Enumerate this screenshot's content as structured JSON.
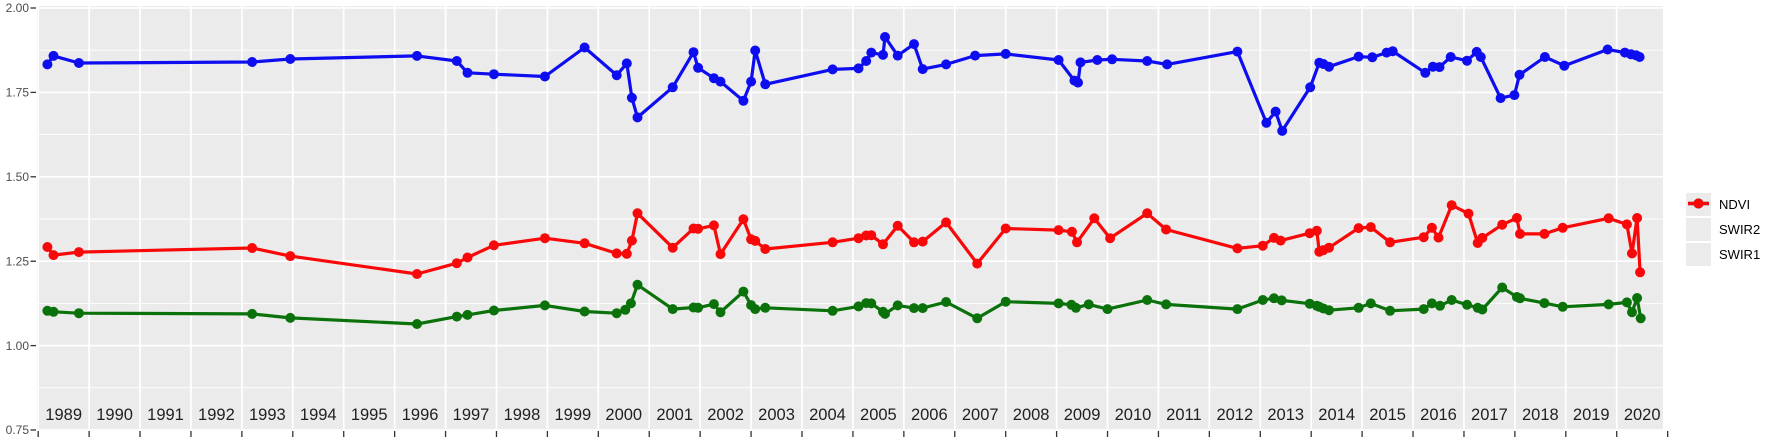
{
  "colors": {
    "background": "#FFFFFF",
    "panel_bg": "#EBEBEB",
    "grid": "#FFFFFF",
    "axis_text_y": "#4D4D4D",
    "axis_text_x": "#1F1F1F",
    "tick": "#333333",
    "legend_key_bg": "#EBEBEB",
    "legend_text": "#000000"
  },
  "chart_data": {
    "type": "line",
    "marker": "circle",
    "title": "",
    "xlabel": "",
    "ylabel": "",
    "x_unit": "year",
    "xlim": [
      1988.97,
      2020.91
    ],
    "ylim": [
      0.75,
      2.0
    ],
    "grid": true,
    "legend_position": "right",
    "y_ticks": [
      {
        "label": "2.00",
        "value": 2.0
      },
      {
        "label": "1.75",
        "value": 1.75
      },
      {
        "label": "1.50",
        "value": 1.5
      },
      {
        "label": "1.25",
        "value": 1.25
      },
      {
        "label": "1.00",
        "value": 1.0
      },
      {
        "label": "0.75",
        "value": 0.75
      }
    ],
    "y_minor_ticks": [
      1.875,
      1.625,
      1.375,
      1.125,
      0.875
    ],
    "x_year_labels": [
      1989,
      1990,
      1991,
      1992,
      1993,
      1994,
      1995,
      1996,
      1997,
      1998,
      1999,
      2000,
      2001,
      2002,
      2003,
      2004,
      2005,
      2006,
      2007,
      2008,
      2009,
      2010,
      2011,
      2012,
      2013,
      2014,
      2015,
      2016,
      2017,
      2018,
      2019,
      2020
    ],
    "x_boundary_ticks": [
      1989,
      1990,
      1991,
      1992,
      1993,
      1994,
      1995,
      1996,
      1997,
      1998,
      1999,
      2000,
      2001,
      2002,
      2003,
      2004,
      2005,
      2006,
      2007,
      2008,
      2009,
      2010,
      2011,
      2012,
      2013,
      2014,
      2015,
      2016,
      2017,
      2018,
      2019,
      2020,
      2021
    ],
    "legend": [
      {
        "label": "NDVI",
        "color": "#0D0DF0"
      },
      {
        "label": "SWIR2",
        "color": "#0B720B"
      },
      {
        "label": "SWIR1",
        "color": "#F80808"
      }
    ],
    "series": [
      {
        "name": "NDVI",
        "color": "#0D0DF0",
        "points": [
          [
            1989.18,
            1.833
          ],
          [
            1989.3,
            1.858
          ],
          [
            1989.8,
            1.837
          ],
          [
            1993.2,
            1.84
          ],
          [
            1993.95,
            1.849
          ],
          [
            1996.44,
            1.858
          ],
          [
            1997.22,
            1.843
          ],
          [
            1997.43,
            1.808
          ],
          [
            1997.95,
            1.804
          ],
          [
            1998.95,
            1.797
          ],
          [
            1999.73,
            1.883
          ],
          [
            2000.36,
            1.801
          ],
          [
            2000.56,
            1.836
          ],
          [
            2000.66,
            1.734
          ],
          [
            2000.77,
            1.676
          ],
          [
            2001.46,
            1.765
          ],
          [
            2001.87,
            1.869
          ],
          [
            2001.96,
            1.823
          ],
          [
            2002.27,
            1.792
          ],
          [
            2002.4,
            1.782
          ],
          [
            2002.85,
            1.725
          ],
          [
            2003.0,
            1.782
          ],
          [
            2003.08,
            1.874
          ],
          [
            2003.28,
            1.774
          ],
          [
            2004.6,
            1.818
          ],
          [
            2005.11,
            1.821
          ],
          [
            2005.26,
            1.843
          ],
          [
            2005.36,
            1.868
          ],
          [
            2005.59,
            1.861
          ],
          [
            2005.63,
            1.914
          ],
          [
            2005.88,
            1.859
          ],
          [
            2006.2,
            1.893
          ],
          [
            2006.37,
            1.819
          ],
          [
            2006.83,
            1.833
          ],
          [
            2007.4,
            1.859
          ],
          [
            2008.0,
            1.864
          ],
          [
            2009.04,
            1.846
          ],
          [
            2009.35,
            1.785
          ],
          [
            2009.42,
            1.779
          ],
          [
            2009.47,
            1.839
          ],
          [
            2009.8,
            1.846
          ],
          [
            2010.09,
            1.848
          ],
          [
            2010.78,
            1.843
          ],
          [
            2011.17,
            1.833
          ],
          [
            2012.55,
            1.871
          ],
          [
            2013.12,
            1.66
          ],
          [
            2013.3,
            1.693
          ],
          [
            2013.43,
            1.636
          ],
          [
            2013.98,
            1.765
          ],
          [
            2014.16,
            1.838
          ],
          [
            2014.24,
            1.834
          ],
          [
            2014.35,
            1.826
          ],
          [
            2014.93,
            1.856
          ],
          [
            2015.2,
            1.854
          ],
          [
            2015.48,
            1.868
          ],
          [
            2015.6,
            1.872
          ],
          [
            2016.24,
            1.808
          ],
          [
            2016.39,
            1.826
          ],
          [
            2016.52,
            1.825
          ],
          [
            2016.74,
            1.855
          ],
          [
            2017.06,
            1.844
          ],
          [
            2017.25,
            1.87
          ],
          [
            2017.33,
            1.855
          ],
          [
            2017.72,
            1.733
          ],
          [
            2017.99,
            1.742
          ],
          [
            2018.09,
            1.802
          ],
          [
            2018.59,
            1.855
          ],
          [
            2018.97,
            1.829
          ],
          [
            2019.82,
            1.877
          ],
          [
            2020.16,
            1.868
          ],
          [
            2020.28,
            1.863
          ],
          [
            2020.38,
            1.86
          ],
          [
            2020.45,
            1.855
          ]
        ]
      },
      {
        "name": "SWIR2",
        "color": "#0B720B",
        "points": [
          [
            1989.18,
            1.103
          ],
          [
            1989.3,
            1.1
          ],
          [
            1989.8,
            1.096
          ],
          [
            1993.2,
            1.094
          ],
          [
            1993.95,
            1.082
          ],
          [
            1996.44,
            1.064
          ],
          [
            1997.22,
            1.086
          ],
          [
            1997.43,
            1.091
          ],
          [
            1997.95,
            1.104
          ],
          [
            1998.95,
            1.119
          ],
          [
            1999.73,
            1.101
          ],
          [
            2000.36,
            1.096
          ],
          [
            2000.53,
            1.106
          ],
          [
            2000.64,
            1.125
          ],
          [
            2000.77,
            1.18
          ],
          [
            2001.46,
            1.108
          ],
          [
            2001.87,
            1.113
          ],
          [
            2001.96,
            1.112
          ],
          [
            2002.27,
            1.123
          ],
          [
            2002.4,
            1.099
          ],
          [
            2002.85,
            1.16
          ],
          [
            2003.0,
            1.12
          ],
          [
            2003.08,
            1.108
          ],
          [
            2003.28,
            1.112
          ],
          [
            2004.6,
            1.103
          ],
          [
            2005.11,
            1.116
          ],
          [
            2005.26,
            1.126
          ],
          [
            2005.36,
            1.125
          ],
          [
            2005.59,
            1.1
          ],
          [
            2005.63,
            1.094
          ],
          [
            2005.88,
            1.119
          ],
          [
            2006.2,
            1.111
          ],
          [
            2006.37,
            1.111
          ],
          [
            2006.83,
            1.129
          ],
          [
            2007.44,
            1.081
          ],
          [
            2008.0,
            1.13
          ],
          [
            2009.04,
            1.125
          ],
          [
            2009.29,
            1.121
          ],
          [
            2009.38,
            1.112
          ],
          [
            2009.63,
            1.122
          ],
          [
            2010.0,
            1.108
          ],
          [
            2010.78,
            1.135
          ],
          [
            2011.15,
            1.122
          ],
          [
            2012.55,
            1.108
          ],
          [
            2013.05,
            1.135
          ],
          [
            2013.27,
            1.14
          ],
          [
            2013.42,
            1.134
          ],
          [
            2013.97,
            1.124
          ],
          [
            2014.11,
            1.118
          ],
          [
            2014.16,
            1.115
          ],
          [
            2014.24,
            1.11
          ],
          [
            2014.35,
            1.105
          ],
          [
            2014.93,
            1.112
          ],
          [
            2015.17,
            1.125
          ],
          [
            2015.55,
            1.103
          ],
          [
            2016.21,
            1.108
          ],
          [
            2016.37,
            1.125
          ],
          [
            2016.53,
            1.118
          ],
          [
            2016.76,
            1.135
          ],
          [
            2017.06,
            1.121
          ],
          [
            2017.27,
            1.112
          ],
          [
            2017.36,
            1.107
          ],
          [
            2017.75,
            1.172
          ],
          [
            2018.04,
            1.144
          ],
          [
            2018.1,
            1.14
          ],
          [
            2018.58,
            1.126
          ],
          [
            2018.94,
            1.115
          ],
          [
            2019.84,
            1.122
          ],
          [
            2020.2,
            1.128
          ],
          [
            2020.3,
            1.099
          ],
          [
            2020.4,
            1.141
          ],
          [
            2020.47,
            1.081
          ]
        ]
      },
      {
        "name": "SWIR1",
        "color": "#F80808",
        "points": [
          [
            1989.18,
            1.292
          ],
          [
            1989.3,
            1.268
          ],
          [
            1989.8,
            1.277
          ],
          [
            1993.2,
            1.289
          ],
          [
            1993.95,
            1.265
          ],
          [
            1996.44,
            1.212
          ],
          [
            1997.22,
            1.244
          ],
          [
            1997.43,
            1.261
          ],
          [
            1997.95,
            1.297
          ],
          [
            1998.95,
            1.318
          ],
          [
            1999.73,
            1.303
          ],
          [
            2000.36,
            1.273
          ],
          [
            2000.56,
            1.272
          ],
          [
            2000.66,
            1.311
          ],
          [
            2000.77,
            1.392
          ],
          [
            2001.46,
            1.29
          ],
          [
            2001.87,
            1.347
          ],
          [
            2001.96,
            1.346
          ],
          [
            2002.27,
            1.356
          ],
          [
            2002.4,
            1.271
          ],
          [
            2002.85,
            1.374
          ],
          [
            2003.0,
            1.315
          ],
          [
            2003.08,
            1.31
          ],
          [
            2003.28,
            1.286
          ],
          [
            2004.6,
            1.306
          ],
          [
            2005.11,
            1.318
          ],
          [
            2005.26,
            1.326
          ],
          [
            2005.36,
            1.327
          ],
          [
            2005.59,
            1.3
          ],
          [
            2005.88,
            1.355
          ],
          [
            2006.2,
            1.306
          ],
          [
            2006.37,
            1.308
          ],
          [
            2006.83,
            1.365
          ],
          [
            2007.44,
            1.243
          ],
          [
            2008.0,
            1.347
          ],
          [
            2009.04,
            1.342
          ],
          [
            2009.3,
            1.337
          ],
          [
            2009.4,
            1.306
          ],
          [
            2009.74,
            1.377
          ],
          [
            2010.05,
            1.318
          ],
          [
            2010.78,
            1.392
          ],
          [
            2011.15,
            1.344
          ],
          [
            2012.55,
            1.288
          ],
          [
            2013.05,
            1.296
          ],
          [
            2013.27,
            1.319
          ],
          [
            2013.4,
            1.311
          ],
          [
            2013.97,
            1.333
          ],
          [
            2014.11,
            1.34
          ],
          [
            2014.16,
            1.278
          ],
          [
            2014.24,
            1.283
          ],
          [
            2014.35,
            1.29
          ],
          [
            2014.93,
            1.348
          ],
          [
            2015.17,
            1.351
          ],
          [
            2015.55,
            1.306
          ],
          [
            2016.21,
            1.321
          ],
          [
            2016.37,
            1.349
          ],
          [
            2016.5,
            1.32
          ],
          [
            2016.76,
            1.416
          ],
          [
            2017.09,
            1.391
          ],
          [
            2017.27,
            1.304
          ],
          [
            2017.36,
            1.319
          ],
          [
            2017.75,
            1.358
          ],
          [
            2018.04,
            1.378
          ],
          [
            2018.1,
            1.331
          ],
          [
            2018.58,
            1.331
          ],
          [
            2018.94,
            1.349
          ],
          [
            2019.84,
            1.377
          ],
          [
            2020.2,
            1.359
          ],
          [
            2020.3,
            1.273
          ],
          [
            2020.4,
            1.378
          ],
          [
            2020.46,
            1.217
          ]
        ]
      }
    ]
  }
}
